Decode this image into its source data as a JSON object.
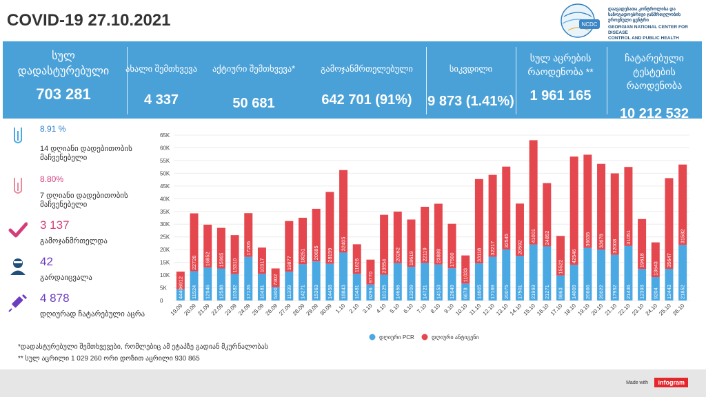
{
  "header": {
    "title": "COVID-19 27.10.2021"
  },
  "logo": {
    "line1": "დაავადებათა კონტროლისა და",
    "line2": "საზოგადოებრივი ჯანმრთელობის",
    "line3": "ეროვნული ცენტრი",
    "en1": "GEORGIAN NATIONAL CENTER FOR DISEASE",
    "en2": "CONTROL AND PUBLIC HEALTH",
    "badge": "NCDC"
  },
  "banner": {
    "confirmed": {
      "l1": "სულ",
      "l2": "დადასტურებული",
      "value": "703 281"
    },
    "new_cases": {
      "label": "ახალი შემთხვევა",
      "value": "4 337"
    },
    "active": {
      "label": "აქტიური შემთხვევა*",
      "value": "50 681"
    },
    "recovered": {
      "label": "გამოჯანმრთელებული",
      "value": "642 701 (91%)"
    },
    "deaths": {
      "label": "სიკვდილი",
      "value": "9 873 (1.41%)"
    },
    "vaccines": {
      "l1": "სულ აცრების",
      "l2": "რაოდენობა **",
      "value": "1 961 165"
    },
    "tests": {
      "l1": "ჩატარებული ტესტების",
      "l2": "რაოდენობა",
      "value": "10 212 532"
    }
  },
  "sidebar": {
    "positivity14": {
      "value": "8.91 %",
      "l1": "14 დღიანი დადებითობის",
      "l2": "მაჩვენებელი"
    },
    "positivity7": {
      "value": "8.80%",
      "l1": "7 დღიანი დადებითობის",
      "l2": "მაჩვენებელი"
    },
    "recovered": {
      "value": "3 137",
      "label": "გამოჯანმრთელდა"
    },
    "deaths": {
      "value": "42",
      "label": "გარდაიცვალა"
    },
    "vaccinations": {
      "value": "4 878",
      "label": "დღიურად ჩატარებული აცრა"
    }
  },
  "colors": {
    "pcr": "#4aa8e3",
    "antigen": "#e5474e",
    "banner": "#4aa1d8",
    "accent": "#d43d7c",
    "purple": "#6c3cc2",
    "navy": "#1f4f7a"
  },
  "chart_data": {
    "type": "bar",
    "stacked": true,
    "categories": [
      "19.09",
      "20.09",
      "21.09",
      "22.09",
      "23.09",
      "24.09",
      "25.09",
      "26.09",
      "27.09",
      "28.09",
      "29.09",
      "30.09",
      "1.10",
      "2.10",
      "3.10",
      "4.10",
      "5.10",
      "6.10",
      "7.10",
      "8.10",
      "9.10",
      "10.10",
      "11.10",
      "12.10",
      "13.10",
      "14.10",
      "15.10",
      "16.10",
      "17.10",
      "18.10",
      "19.10",
      "20.10",
      "21.10",
      "22.10",
      "23.10",
      "24.10",
      "25.10",
      "26.10"
    ],
    "series": [
      {
        "name": "დღიური PCR",
        "values": [
          4440,
          11524,
          12946,
          12588,
          10382,
          17126,
          10481,
          5300,
          11339,
          14271,
          15363,
          14458,
          18843,
          10481,
          6296,
          10125,
          14656,
          13209,
          14721,
          14153,
          12649,
          6678,
          14605,
          17169,
          20075,
          17501,
          21993,
          21271,
          9863,
          14009,
          20666,
          20022,
          17952,
          21436,
          12393,
          9204,
          12443,
          21852
        ]
      },
      {
        "name": "დღიური ანტიგენი",
        "values": [
          6912,
          22726,
          16852,
          15965,
          15310,
          17205,
          10317,
          7302,
          19877,
          18251,
          20685,
          28199,
          32405,
          11626,
          9770,
          23554,
          20262,
          18619,
          22119,
          23889,
          17500,
          11033,
          33118,
          32217,
          32545,
          20592,
          41001,
          24852,
          15522,
          42546,
          36635,
          33678,
          32008,
          31051,
          19618,
          13643,
          35647,
          31582
        ]
      }
    ],
    "ylim": [
      0,
      65000
    ],
    "yticks": [
      0,
      5000,
      10000,
      15000,
      20000,
      25000,
      30000,
      35000,
      40000,
      45000,
      50000,
      55000,
      60000,
      65000
    ],
    "ytick_labels": [
      "0",
      "5K",
      "10K",
      "15K",
      "20K",
      "25K",
      "30K",
      "35K",
      "40K",
      "45K",
      "50K",
      "55K",
      "60K",
      "65K"
    ],
    "legend": "bottom"
  },
  "footnotes": {
    "f1": "*დადასტურებული შემთხვევები, რომლებიც ამ ეტაპზე გადიან მკურნალობას",
    "f2": "**  სულ აცრილი 1 029 260  ორი დოზით აცრილი 930 865"
  },
  "footer": {
    "made_with": "Made with",
    "brand": "infogram"
  }
}
